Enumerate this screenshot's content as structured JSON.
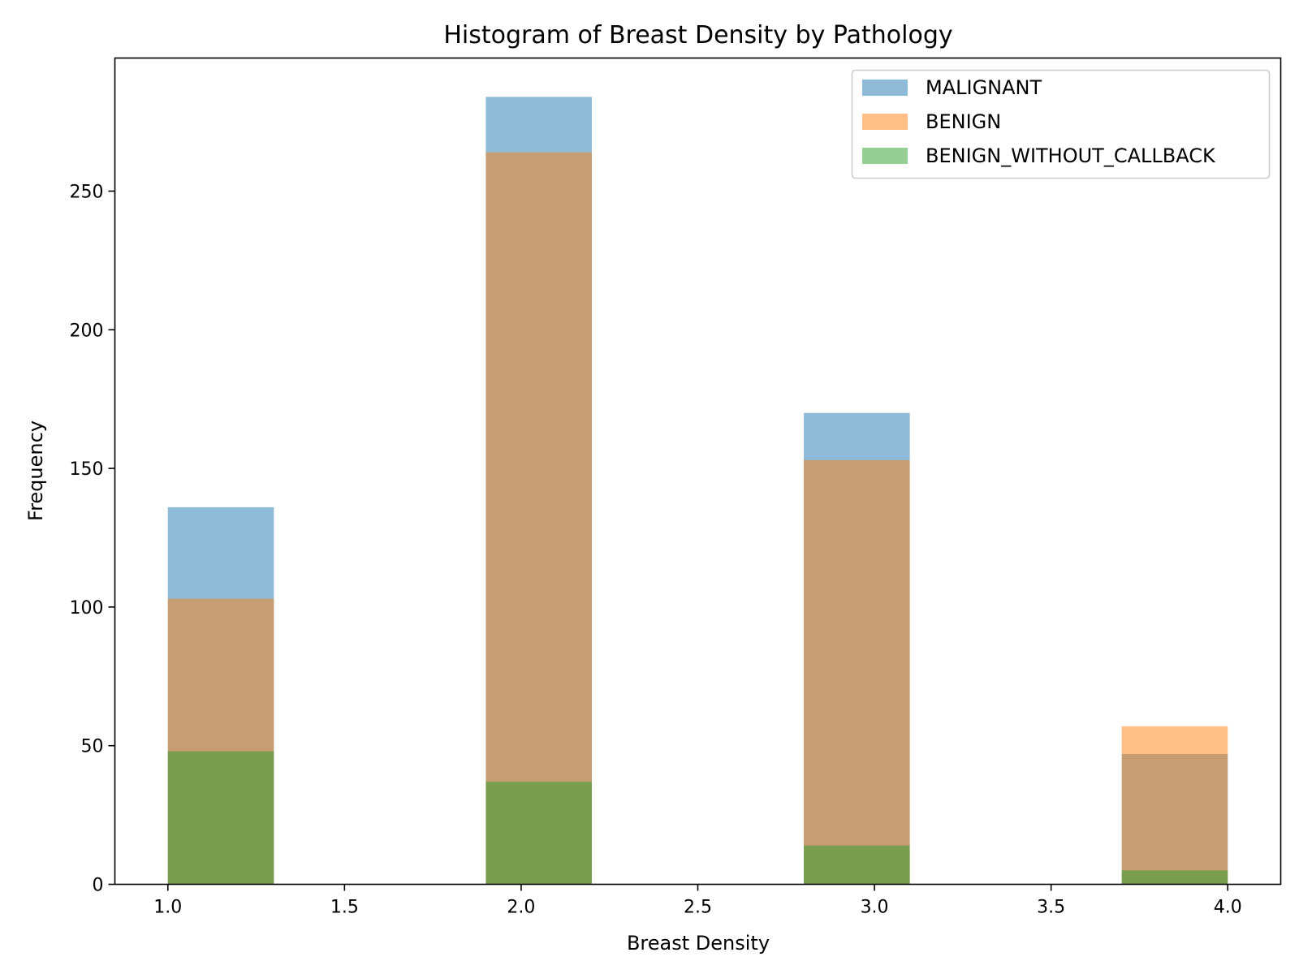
{
  "chart_data": {
    "type": "bar",
    "title": "Histogram of Breast Density by Pathology",
    "xlabel": "Breast Density",
    "ylabel": "Frequency",
    "xlim": [
      0.85,
      4.15
    ],
    "ylim": [
      0,
      298
    ],
    "bin_width": 0.3,
    "x_ticks": [
      "1.0",
      "1.5",
      "2.0",
      "2.5",
      "3.0",
      "3.5",
      "4.0"
    ],
    "x_tick_values": [
      1.0,
      1.5,
      2.0,
      2.5,
      3.0,
      3.5,
      4.0
    ],
    "y_ticks": [
      "0",
      "50",
      "100",
      "150",
      "200",
      "250"
    ],
    "y_tick_values": [
      0,
      50,
      100,
      150,
      200,
      250
    ],
    "grid": false,
    "legend_position": "top-right",
    "series": [
      {
        "name": "MALIGNANT",
        "color": "#1f77b4",
        "alpha": 0.5,
        "bins": [
          {
            "start": 1.0,
            "end": 1.3,
            "value": 136
          },
          {
            "start": 1.9,
            "end": 2.2,
            "value": 284
          },
          {
            "start": 2.8,
            "end": 3.1,
            "value": 170
          },
          {
            "start": 3.7,
            "end": 4.0,
            "value": 47
          }
        ]
      },
      {
        "name": "BENIGN",
        "color": "#ff7f0e",
        "alpha": 0.5,
        "bins": [
          {
            "start": 1.0,
            "end": 1.3,
            "value": 103
          },
          {
            "start": 1.9,
            "end": 2.2,
            "value": 264
          },
          {
            "start": 2.8,
            "end": 3.1,
            "value": 153
          },
          {
            "start": 3.7,
            "end": 4.0,
            "value": 57
          }
        ]
      },
      {
        "name": "BENIGN_WITHOUT_CALLBACK",
        "color": "#2ca02c",
        "alpha": 0.5,
        "bins": [
          {
            "start": 1.0,
            "end": 1.3,
            "value": 48
          },
          {
            "start": 1.9,
            "end": 2.2,
            "value": 37
          },
          {
            "start": 2.8,
            "end": 3.1,
            "value": 14
          },
          {
            "start": 3.7,
            "end": 4.0,
            "value": 5
          }
        ]
      }
    ]
  }
}
